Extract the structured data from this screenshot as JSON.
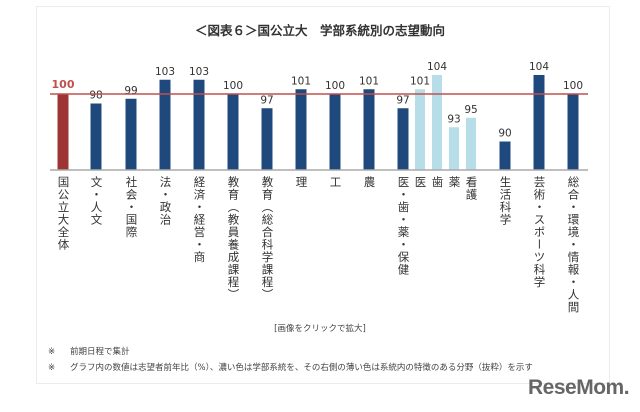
{
  "chart_data": {
    "type": "bar",
    "title": "＜図表６＞国公立大　学部系統別の志望動向",
    "categories": [
      "国公立大全体",
      "文・人文",
      "社会・国際",
      "法・政治",
      "経済・経営・商",
      "教育（教員養成課程）",
      "教育（総合科学課程）",
      "理",
      "工",
      "農",
      "医・歯・薬・保健",
      "医",
      "歯",
      "薬",
      "看護",
      "生活科学",
      "芸術・スポーツ科学",
      "総合・環境・情報・人間"
    ],
    "values": [
      100,
      98,
      99,
      103,
      103,
      100,
      97,
      101,
      100,
      101,
      97,
      101,
      104,
      93,
      95,
      90,
      104,
      100
    ],
    "bar_kind": [
      "total",
      "main",
      "main",
      "main",
      "main",
      "main",
      "main",
      "main",
      "main",
      "main",
      "main",
      "sub",
      "sub",
      "sub",
      "sub",
      "main",
      "main",
      "main"
    ],
    "reference_line": 100,
    "ylim": [
      84,
      106
    ],
    "grid": false,
    "colors": {
      "total": "#9e3535",
      "main": "#1f497d",
      "sub": "#b7dde8",
      "reference_line": "#c0504d",
      "total_label": "#c0504d"
    }
  },
  "click_note": "[画像をクリックで拡大]",
  "notes": [
    {
      "mark": "※",
      "text": "前期日程で集計"
    },
    {
      "mark": "※",
      "text": "グラフ内の数値は志望者前年比（%）、濃い色は学部系統を、その右側の薄い色は系統内の特徴のある分野（抜粋）を示す"
    }
  ],
  "logo": "ReseMom"
}
